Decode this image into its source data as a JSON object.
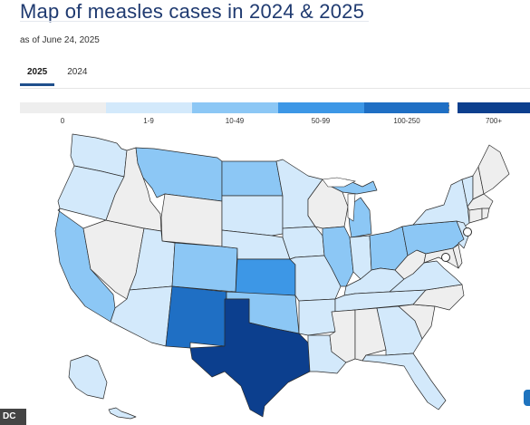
{
  "title": "Map of measles cases in 2024 & 2025",
  "as_of": "as of June 24, 2025",
  "tabs": [
    {
      "label": "2025",
      "active": true
    },
    {
      "label": "2024",
      "active": false
    }
  ],
  "legend": [
    {
      "label": "0",
      "color": "#eeeeee"
    },
    {
      "label": "1-9",
      "color": "#d3e9fb"
    },
    {
      "label": "10-49",
      "color": "#8cc7f5"
    },
    {
      "label": "50-99",
      "color": "#3d97e6"
    },
    {
      "label": "100-250",
      "color": "#1f6fc4"
    },
    {
      "label": "700+",
      "color": "#0c3f8e"
    }
  ],
  "corner_badge": "DC",
  "colors": {
    "border": "#2b2b2b",
    "background": "#ffffff"
  },
  "states": {
    "WA": 1,
    "OR": 1,
    "CA": 2,
    "ID": 0,
    "NV": 0,
    "UT": 1,
    "AZ": 1,
    "MT": 2,
    "WY": 0,
    "CO": 2,
    "NM": 4,
    "ND": 2,
    "SD": 1,
    "NE": 1,
    "KS": 3,
    "OK": 2,
    "TX": 5,
    "MN": 1,
    "IA": 1,
    "MO": 1,
    "AR": 1,
    "LA": 1,
    "WI": 0,
    "IL": 2,
    "MI": 2,
    "IN": 1,
    "OH": 2,
    "KY": 1,
    "TN": 1,
    "MS": 0,
    "AL": 0,
    "GA": 1,
    "FL": 1,
    "SC": 0,
    "NC": 0,
    "VA": 1,
    "WV": 0,
    "PA": 2,
    "NY": 1,
    "NJ": 1,
    "MD": 0,
    "DE": 0,
    "VT": 1,
    "NH": 0,
    "ME": 0,
    "MA": 0,
    "CT": 0,
    "RI": 0,
    "AK": 1,
    "HI": 1
  }
}
